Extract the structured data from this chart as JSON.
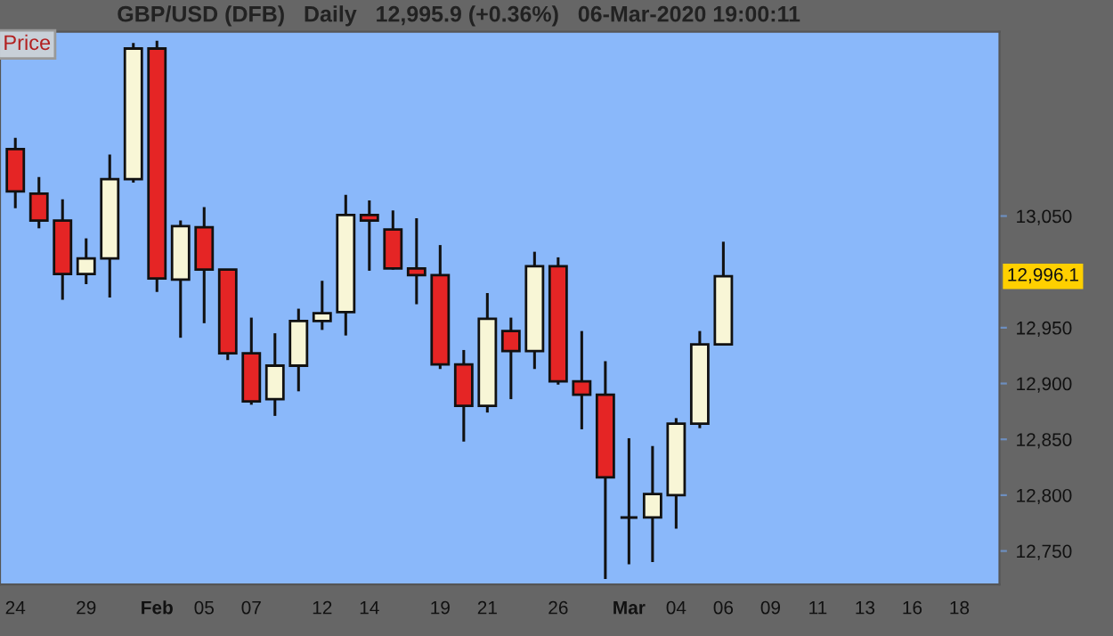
{
  "chart_data": {
    "type": "candlestick",
    "title": "GBP/USD (DFB)   Daily   12,995.9 (+0.36%)   06-Mar-2020 19:00:11",
    "annotations": [
      "Price",
      "12,996.1"
    ],
    "categories": [
      "24",
      null,
      null,
      "29",
      null,
      null,
      "Feb",
      null,
      "05",
      null,
      "07",
      null,
      null,
      "12",
      null,
      "14",
      null,
      null,
      "19",
      null,
      "21",
      null,
      null,
      "26",
      null,
      null,
      "Mar",
      null,
      "04",
      null,
      "06",
      null,
      "09",
      null,
      "11",
      null,
      "13",
      null,
      "16",
      null,
      "18"
    ],
    "ohlc": [
      [
        13110,
        13120,
        13057,
        13072
      ],
      [
        13070,
        13085,
        13039,
        13046
      ],
      [
        13046,
        13065,
        12975,
        12998
      ],
      [
        12998,
        13030,
        12989,
        13012
      ],
      [
        13012,
        13105,
        12977,
        13083
      ],
      [
        13083,
        13205,
        13080,
        13200
      ],
      [
        13200,
        13207,
        12982,
        12994
      ],
      [
        12993,
        13046,
        12941,
        13041
      ],
      [
        13040,
        13058,
        12954,
        13002
      ],
      [
        13002,
        13002,
        12921,
        12927
      ],
      [
        12927,
        12959,
        12881,
        12884
      ],
      [
        12886,
        12945,
        12871,
        12916
      ],
      [
        12916,
        12967,
        12893,
        12956
      ],
      [
        12956,
        12992,
        12948,
        12963
      ],
      [
        12964,
        13069,
        12943,
        13051
      ],
      [
        13051,
        13064,
        13001,
        13046
      ],
      [
        13038,
        13055,
        13002,
        13003
      ],
      [
        13003,
        13048,
        12971,
        12997
      ],
      [
        12997,
        13024,
        12913,
        12917
      ],
      [
        12917,
        12930,
        12848,
        12880
      ],
      [
        12880,
        12981,
        12874,
        12958
      ],
      [
        12947,
        12959,
        12886,
        12929
      ],
      [
        12929,
        13018,
        12913,
        13005
      ],
      [
        13005,
        13013,
        12899,
        12902
      ],
      [
        12902,
        12947,
        12859,
        12890
      ],
      [
        12890,
        12920,
        12725,
        12816
      ],
      [
        12780,
        12851,
        12738,
        12780
      ],
      [
        12780,
        12844,
        12740,
        12801
      ],
      [
        12800,
        12869,
        12770,
        12864
      ],
      [
        12864,
        12947,
        12860,
        12935
      ],
      [
        12935,
        13027,
        12935,
        12996
      ],
      null,
      null,
      null,
      null,
      null,
      null,
      null,
      null,
      null,
      null
    ],
    "colors": [
      "#e52525",
      "#e52525",
      "#e52525",
      "#f8f6d6",
      "#f8f6d6",
      "#f8f6d6",
      "#e52525",
      "#f8f6d6",
      "#e52525",
      "#e52525",
      "#e52525",
      "#f8f6d6",
      "#f8f6d6",
      "#f8f6d6",
      "#f8f6d6",
      "#e52525",
      "#e52525",
      "#e52525",
      "#e52525",
      "#e52525",
      "#f8f6d6",
      "#e52525",
      "#f8f6d6",
      "#e52525",
      "#e52525",
      "#e52525",
      "#111111",
      "#f8f6d6",
      "#f8f6d6",
      "#f8f6d6",
      "#f8f6d6",
      null,
      null,
      null,
      null,
      null,
      null,
      null,
      null,
      null,
      null
    ],
    "ylim": [
      12720,
      13215
    ],
    "yticks": [
      {
        "value": 12750,
        "label": "12,750"
      },
      {
        "value": 12800,
        "label": "12,800"
      },
      {
        "value": 12850,
        "label": "12,850"
      },
      {
        "value": 12900,
        "label": "12,900"
      },
      {
        "value": 12950,
        "label": "12,950"
      },
      {
        "value": 13050,
        "label": "13,050"
      }
    ],
    "grid": false,
    "legend": false
  }
}
